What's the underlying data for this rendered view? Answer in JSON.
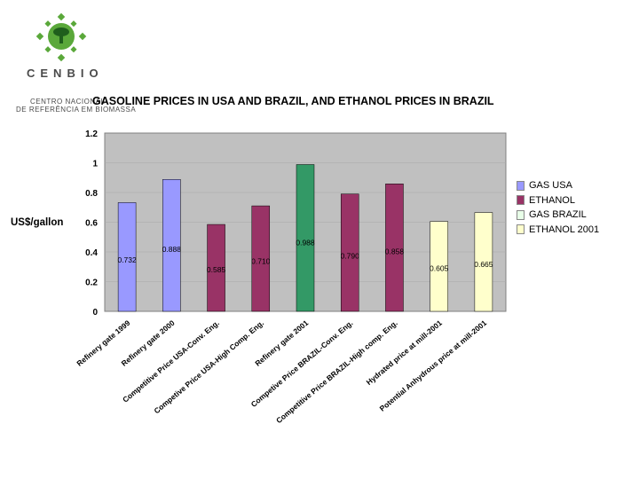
{
  "logo": {
    "wordmark": "CENBIO",
    "subtitle_line1": "CENTRO NACIONAL",
    "subtitle_line2": "DE REFERÊNCIA EM BIOMASSA"
  },
  "chart_data": {
    "type": "bar",
    "title": "GASOLINE PRICES IN USA AND BRAZIL, AND ETHANOL PRICES IN BRAZIL",
    "xlabel": "",
    "ylabel": "US$/gallon",
    "ylim": [
      0,
      1.2
    ],
    "yticks": [
      "0",
      "0.2",
      "0.4",
      "0.6",
      "0.8",
      "1",
      "1.2"
    ],
    "legend_position": "right",
    "legend": [
      {
        "name": "GAS USA",
        "color": "#9999ff"
      },
      {
        "name": "ETHANOL",
        "color": "#993366"
      },
      {
        "name": "GAS BRAZIL",
        "color": "#e8ffe8"
      },
      {
        "name": "ETHANOL 2001",
        "color": "#ffffcc"
      }
    ],
    "bars": [
      {
        "category": "Refinery gate 1999",
        "value": 0.732,
        "label": "0.732",
        "color": "#9999ff"
      },
      {
        "category": "Refinery gate 2000",
        "value": 0.888,
        "label": "0.888",
        "color": "#9999ff"
      },
      {
        "category": "Competitive Price USA-Conv. Eng.",
        "value": 0.585,
        "label": "0.585",
        "color": "#993366"
      },
      {
        "category": "Competive Price USA-High Comp. Eng.",
        "value": 0.71,
        "label": "0.710",
        "color": "#993366"
      },
      {
        "category": "Refinery gate 2001",
        "value": 0.988,
        "label": "0.988",
        "color": "#339966"
      },
      {
        "category": "Competive Price BRAZIL-Conv. Eng.",
        "value": 0.79,
        "label": "0.790",
        "color": "#993366"
      },
      {
        "category": "Competitive Price BRAZIL-High comp. Eng.",
        "value": 0.858,
        "label": "0.858",
        "color": "#993366"
      },
      {
        "category": "Hydrated price at mill-2001",
        "value": 0.605,
        "label": "0.605",
        "color": "#ffffcc"
      },
      {
        "category": "Potential Anhydrous price at mill-2001",
        "value": 0.665,
        "label": "0.665",
        "color": "#ffffcc"
      }
    ]
  }
}
